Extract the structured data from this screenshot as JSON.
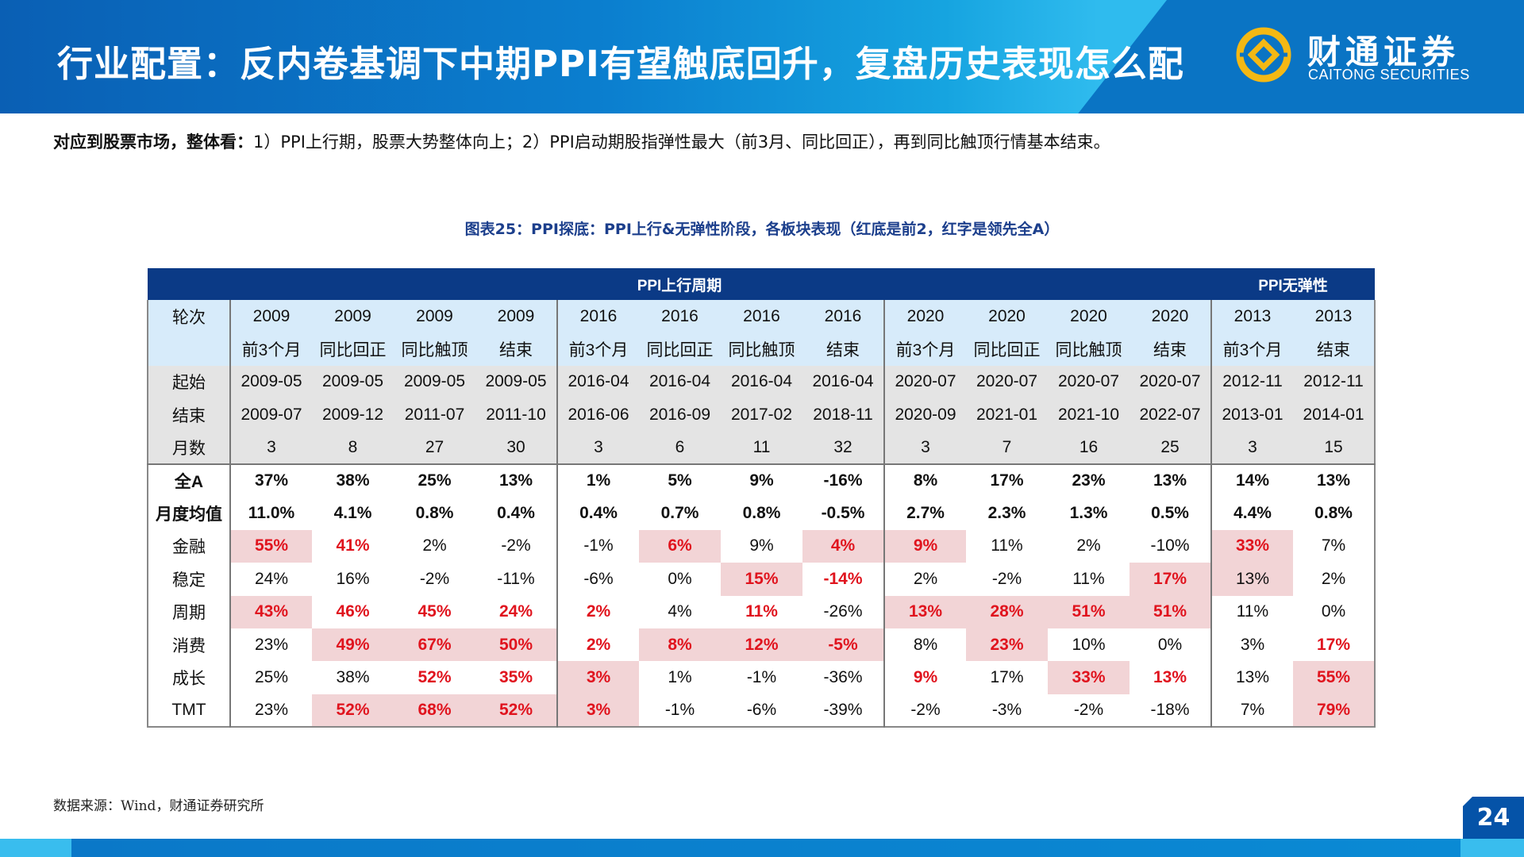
{
  "header": {
    "title": "行业配置：反内卷基调下中期PPI有望触底回升，复盘历史表现怎么配",
    "logo_cn": "财通证券",
    "logo_en": "CAITONG SECURITIES",
    "brand_colors": {
      "blue": "#0a74c4",
      "gold": "#f4b814"
    }
  },
  "summary": {
    "bold": "对应到股票市场，整体看：",
    "text": "1）PPI上行期，股票大势整体向上；2）PPI启动期股指弹性最大（前3月、同比回正），再到同比触顶行情基本结束。"
  },
  "chart_caption": "图表25：PPI探底：PPI上行&无弹性阶段，各板块表现（红底是前2，红字是领先全A）",
  "table": {
    "groups": [
      "PPI上行周期",
      "PPI无弹性"
    ],
    "rows": [
      {
        "label": "轮次",
        "cells": [
          "2009",
          "2009",
          "2009",
          "2009",
          "2016",
          "2016",
          "2016",
          "2016",
          "2020",
          "2020",
          "2020",
          "2020",
          "2013",
          "2013"
        ]
      },
      {
        "label": "",
        "cells": [
          "前3个月",
          "同比回正",
          "同比触顶",
          "结束",
          "前3个月",
          "同比回正",
          "同比触顶",
          "结束",
          "前3个月",
          "同比回正",
          "同比触顶",
          "结束",
          "前3个月",
          "结束"
        ]
      },
      {
        "label": "起始",
        "cells": [
          "2009-05",
          "2009-05",
          "2009-05",
          "2009-05",
          "2016-04",
          "2016-04",
          "2016-04",
          "2016-04",
          "2020-07",
          "2020-07",
          "2020-07",
          "2020-07",
          "2012-11",
          "2012-11"
        ]
      },
      {
        "label": "结束",
        "cells": [
          "2009-07",
          "2009-12",
          "2011-07",
          "2011-10",
          "2016-06",
          "2016-09",
          "2017-02",
          "2018-11",
          "2020-09",
          "2021-01",
          "2021-10",
          "2022-07",
          "2013-01",
          "2014-01"
        ]
      },
      {
        "label": "月数",
        "cells": [
          "3",
          "8",
          "27",
          "30",
          "3",
          "6",
          "11",
          "32",
          "3",
          "7",
          "16",
          "25",
          "3",
          "15"
        ]
      },
      {
        "label": "全A",
        "cells": [
          "37%",
          "38%",
          "25%",
          "13%",
          "1%",
          "5%",
          "9%",
          "-16%",
          "8%",
          "17%",
          "23%",
          "13%",
          "14%",
          "13%"
        ]
      },
      {
        "label": "月度均值",
        "cells": [
          "11.0%",
          "4.1%",
          "0.8%",
          "0.4%",
          "0.4%",
          "0.7%",
          "0.8%",
          "-0.5%",
          "2.7%",
          "2.3%",
          "1.3%",
          "0.5%",
          "4.4%",
          "0.8%"
        ]
      },
      {
        "label": "金融",
        "cells": [
          "55%",
          "41%",
          "2%",
          "-2%",
          "-1%",
          "6%",
          "9%",
          "4%",
          "9%",
          "11%",
          "2%",
          "-10%",
          "33%",
          "7%"
        ],
        "styles": "hrnnnhnhhnnnhn"
      },
      {
        "label": "稳定",
        "cells": [
          "24%",
          "16%",
          "-2%",
          "-11%",
          "-6%",
          "0%",
          "15%",
          "-14%",
          "2%",
          "-2%",
          "11%",
          "17%",
          "13%",
          "2%"
        ],
        "styles": "nnnnnnhrnnnhbn"
      },
      {
        "label": "周期",
        "cells": [
          "43%",
          "46%",
          "45%",
          "24%",
          "2%",
          "4%",
          "11%",
          "-26%",
          "13%",
          "28%",
          "51%",
          "51%",
          "11%",
          "0%"
        ],
        "styles": "hrrrrnrnhhhhnn"
      },
      {
        "label": "消费",
        "cells": [
          "23%",
          "49%",
          "67%",
          "50%",
          "2%",
          "8%",
          "12%",
          "-5%",
          "8%",
          "23%",
          "10%",
          "0%",
          "3%",
          "17%"
        ],
        "styles": "nhhhrhhhnhnnnr"
      },
      {
        "label": "成长",
        "cells": [
          "25%",
          "38%",
          "52%",
          "35%",
          "3%",
          "1%",
          "-1%",
          "-36%",
          "9%",
          "17%",
          "33%",
          "13%",
          "13%",
          "55%"
        ],
        "styles": "nnrrhnnnrnhrnh"
      },
      {
        "label": "TMT",
        "cells": [
          "23%",
          "52%",
          "68%",
          "52%",
          "3%",
          "-1%",
          "-6%",
          "-39%",
          "-2%",
          "-3%",
          "-2%",
          "-18%",
          "7%",
          "79%"
        ],
        "styles": "nhhhhnnnnnnnnh"
      }
    ],
    "highlight_colors": {
      "red_text": "#e0141e",
      "red_bg": "#f2d4d6"
    }
  },
  "source": "数据来源：Wind，财通证券研究所",
  "page_number": "24"
}
